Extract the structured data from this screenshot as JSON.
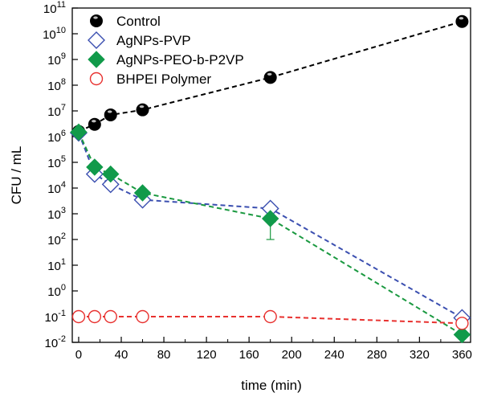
{
  "chart_data": {
    "type": "scatter",
    "title": "",
    "xlabel": "time (min)",
    "ylabel": "CFU / mL",
    "xlim": [
      -6,
      368
    ],
    "ylim_log10": [
      -2,
      11
    ],
    "y_scale": "log",
    "grid": false,
    "legend_position": "top-left",
    "x_ticks": [
      0,
      40,
      80,
      120,
      160,
      200,
      240,
      280,
      320,
      360
    ],
    "x_tick_labels": [
      "0",
      "40",
      "80",
      "120",
      "160",
      "200",
      "240",
      "280",
      "320",
      "360"
    ],
    "y_ticks_log10": [
      -2,
      -1,
      0,
      1,
      2,
      3,
      4,
      5,
      6,
      7,
      8,
      9,
      10,
      11
    ],
    "y_tick_base": "10",
    "y_tick_exponents": [
      "-2",
      "-1",
      "0",
      "1",
      "2",
      "3",
      "4",
      "5",
      "6",
      "7",
      "8",
      "9",
      "10",
      "11"
    ],
    "series": [
      {
        "name": "Control",
        "marker": "filled-circle",
        "color": "#000000",
        "line_color": "#000000",
        "x": [
          0,
          15,
          30,
          60,
          180,
          360
        ],
        "y": [
          1600000.0,
          3000000.0,
          7000000.0,
          11000000.0,
          200000000.0,
          30000000000.0
        ]
      },
      {
        "name": "AgNPs-PVP",
        "marker": "open-diamond",
        "color": "#3b4fb0",
        "line_color": "#3b4fb0",
        "x": [
          0,
          15,
          30,
          60,
          180,
          360
        ],
        "y": [
          1400000.0,
          35000.0,
          14000.0,
          3500.0,
          1600.0,
          0.09
        ]
      },
      {
        "name": "AgNPs-PEO-b-P2VP",
        "marker": "filled-diamond",
        "color": "#119a4a",
        "line_color": "#1a9940",
        "x": [
          0,
          15,
          30,
          60,
          180,
          360
        ],
        "y": [
          1500000.0,
          65000.0,
          35000.0,
          6500.0,
          650.0,
          0.02
        ],
        "error_bars": [
          {
            "x": 180,
            "low": 100.0,
            "high": 1200.0
          }
        ]
      },
      {
        "name": "BHPEI Polymer",
        "marker": "open-circle",
        "color": "#e8312f",
        "line_color": "#e8312f",
        "x": [
          0,
          15,
          30,
          60,
          180,
          360
        ],
        "y": [
          0.1,
          0.1,
          0.1,
          0.1,
          0.1,
          0.055
        ]
      }
    ]
  }
}
